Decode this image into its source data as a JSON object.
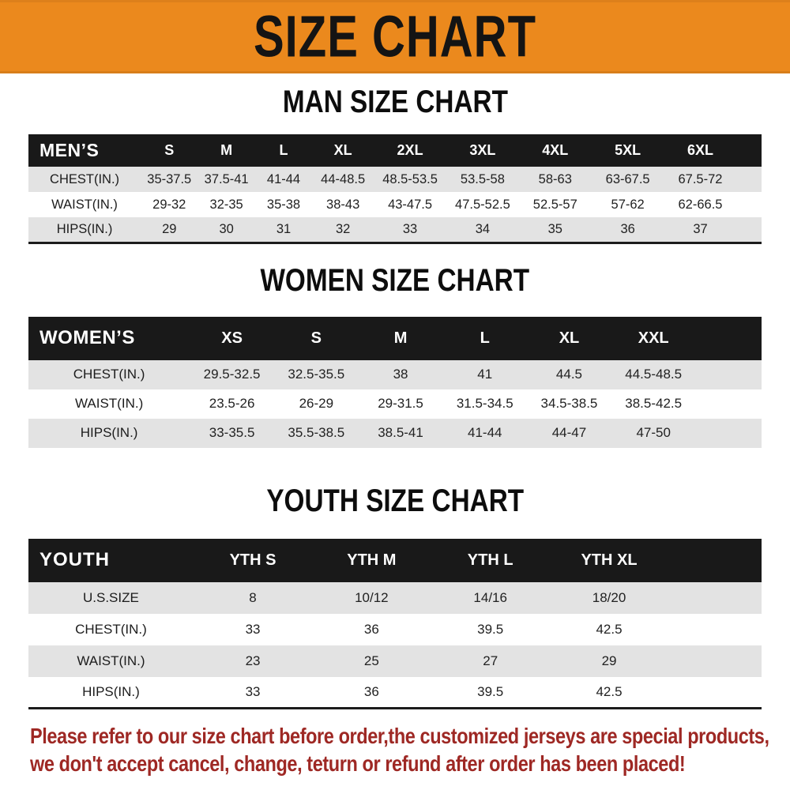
{
  "banner": {
    "title": "SIZE CHART"
  },
  "colors": {
    "banner_bg": "#EB891D",
    "bar_bg": "#191919",
    "row_alt": "#E3E3E3",
    "note_color": "#9E2824"
  },
  "tables": {
    "men": {
      "title": "MAN SIZE CHART",
      "header": {
        "label": "MEN’S",
        "sizes": [
          "S",
          "M",
          "L",
          "XL",
          "2XL",
          "3XL",
          "4XL",
          "5XL",
          "6XL"
        ]
      },
      "rows": [
        {
          "label": "CHEST(IN.)",
          "values": [
            "35-37.5",
            "37.5-41",
            "41-44",
            "44-48.5",
            "48.5-53.5",
            "53.5-58",
            "58-63",
            "63-67.5",
            "67.5-72"
          ]
        },
        {
          "label": "WAIST(IN.)",
          "values": [
            "29-32",
            "32-35",
            "35-38",
            "38-43",
            "43-47.5",
            "47.5-52.5",
            "52.5-57",
            "57-62",
            "62-66.5"
          ]
        },
        {
          "label": "HIPS(IN.)",
          "values": [
            "29",
            "30",
            "31",
            "32",
            "33",
            "34",
            "35",
            "36",
            "37"
          ]
        }
      ]
    },
    "women": {
      "title": "WOMEN SIZE CHART",
      "header": {
        "label": "WOMEN’S",
        "sizes": [
          "XS",
          "S",
          "M",
          "L",
          "XL",
          "XXL"
        ]
      },
      "rows": [
        {
          "label": "CHEST(IN.)",
          "values": [
            "29.5-32.5",
            "32.5-35.5",
            "38",
            "41",
            "44.5",
            "44.5-48.5"
          ]
        },
        {
          "label": "WAIST(IN.)",
          "values": [
            "23.5-26",
            "26-29",
            "29-31.5",
            "31.5-34.5",
            "34.5-38.5",
            "38.5-42.5"
          ]
        },
        {
          "label": "HIPS(IN.)",
          "values": [
            "33-35.5",
            "35.5-38.5",
            "38.5-41",
            "41-44",
            "44-47",
            "47-50"
          ]
        }
      ]
    },
    "youth": {
      "title": "YOUTH SIZE CHART",
      "header": {
        "label": "YOUTH",
        "sizes": [
          "YTH S",
          "YTH M",
          "YTH L",
          "YTH XL"
        ]
      },
      "rows": [
        {
          "label": "U.S.SIZE",
          "values": [
            "8",
            "10/12",
            "14/16",
            "18/20"
          ]
        },
        {
          "label": "CHEST(IN.)",
          "values": [
            "33",
            "36",
            "39.5",
            "42.5"
          ]
        },
        {
          "label": "WAIST(IN.)",
          "values": [
            "23",
            "25",
            "27",
            "29"
          ]
        },
        {
          "label": "HIPS(IN.)",
          "values": [
            "33",
            "36",
            "39.5",
            "42.5"
          ]
        }
      ]
    }
  },
  "footer": {
    "line1": "Please refer to our size chart before order,the customized jerseys are special products,",
    "line2": "we don't accept cancel, change, teturn or refund after order has been placed!"
  }
}
